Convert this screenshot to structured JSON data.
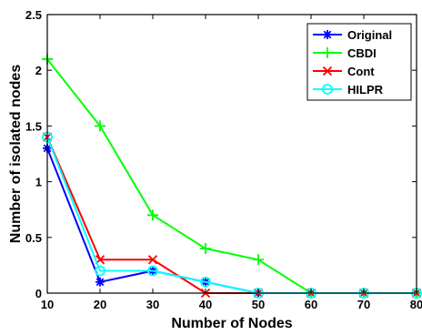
{
  "chart_data": {
    "type": "line",
    "title": "",
    "xlabel": "Number of Nodes",
    "ylabel": "Number of isolated nodes",
    "x": [
      10,
      20,
      30,
      40,
      50,
      60,
      70,
      80
    ],
    "xlim": [
      10,
      80
    ],
    "ylim": [
      0,
      2.5
    ],
    "xticks": [
      "10",
      "20",
      "30",
      "40",
      "50",
      "60",
      "70",
      "80"
    ],
    "yticks": [
      "0",
      "0.5",
      "1",
      "1.5",
      "2",
      "2.5"
    ],
    "grid": false,
    "legend_position": "top-right",
    "series": [
      {
        "name": "Original",
        "color": "#0000ff",
        "marker": "asterisk",
        "values": [
          1.3,
          0.1,
          0.2,
          0.1,
          0,
          0,
          0,
          0
        ]
      },
      {
        "name": "CBDI",
        "color": "#00ff00",
        "marker": "plus",
        "values": [
          2.1,
          1.5,
          0.7,
          0.4,
          0.3,
          0,
          0,
          0
        ]
      },
      {
        "name": "Cont",
        "color": "#ff0000",
        "marker": "cross",
        "values": [
          1.4,
          0.3,
          0.3,
          0,
          0,
          0,
          0,
          0
        ]
      },
      {
        "name": "HILPR",
        "color": "#00ffff",
        "marker": "circle",
        "values": [
          1.4,
          0.2,
          0.2,
          0.1,
          0,
          0,
          0,
          0
        ]
      }
    ]
  }
}
